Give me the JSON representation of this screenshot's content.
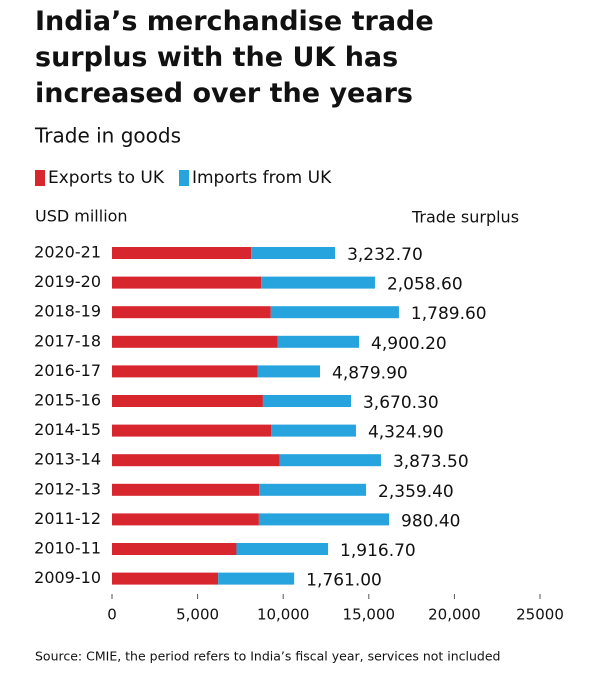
{
  "chart_data": {
    "type": "stacked-bar-horizontal",
    "title": "India’s merchandise trade surplus with the UK has increased over the years",
    "subtitle": "Trade in goods",
    "axis_label": "USD million",
    "source": "Source: CMIE, the period refers to India’s fiscal year, services not included",
    "categories": [
      "2020-21",
      "2019-20",
      "2018-19",
      "2017-18",
      "2016-17",
      "2015-16",
      "2014-15",
      "2013-14",
      "2012-13",
      "2011-12",
      "2010-11",
      "2009-10"
    ],
    "series": [
      {
        "name": "Exports to UK",
        "color": "#d7262e",
        "values": [
          8130,
          8710,
          9275,
          9665,
          8515,
          8815,
          9290,
          9790,
          8600,
          8580,
          7270,
          6200
        ]
      },
      {
        "name": "Imports from UK",
        "color": "#27a3dd",
        "values": [
          4900,
          6650,
          7485,
          4765,
          3635,
          5145,
          4960,
          5920,
          6240,
          7600,
          5350,
          4440
        ]
      }
    ],
    "trade_surplus": {
      "label": "Trade surplus",
      "values": [
        3232.7,
        2058.6,
        1789.6,
        4900.2,
        4879.9,
        3670.3,
        4324.9,
        3873.5,
        2359.4,
        980.4,
        1916.7,
        1761.0
      ],
      "value_labels": [
        "3,232.70",
        "2,058.60",
        "1,789.60",
        "4,900.20",
        "4,879.90",
        "3,670.30",
        "4,324.90",
        "3,873.50",
        "2,359.40",
        "980.40",
        "1,916.70",
        "1,761.00"
      ]
    },
    "xlim": [
      0,
      25000
    ],
    "xticks": [
      0,
      {
        "value": 5000,
        "label": "5,000"
      },
      {
        "value": 10000,
        "label": "10,000"
      },
      {
        "value": 15000,
        "label": "15,000"
      },
      {
        "value": 20000,
        "label": "20,000"
      },
      25000
    ],
    "grid": false
  }
}
